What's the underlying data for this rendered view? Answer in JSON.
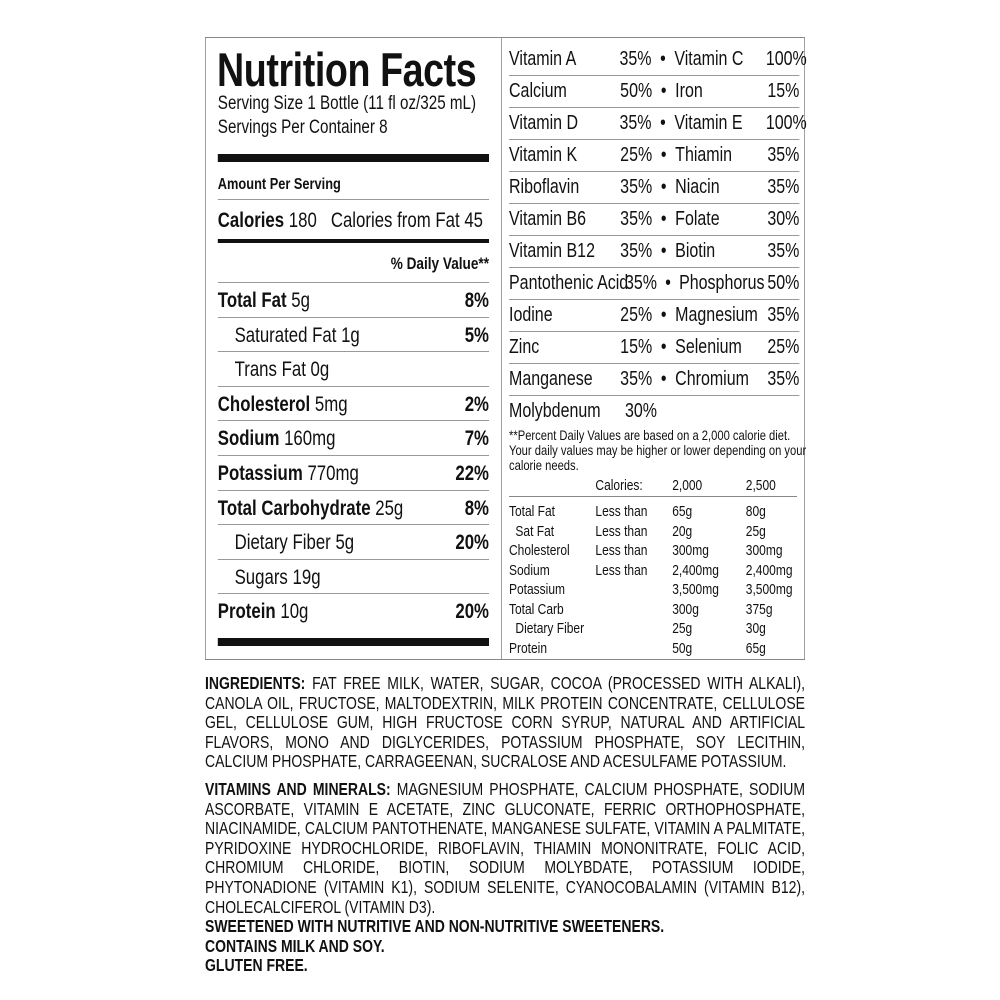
{
  "label": {
    "title": "Nutrition Facts",
    "serving_size": "Serving Size 1 Bottle (11 fl oz/325 mL)",
    "servings_per_container": "Servings Per Container 8",
    "amount_per_serving": "Amount Per Serving",
    "calories_label": "Calories",
    "calories_value": "180",
    "calories_from_fat": "Calories from Fat 45",
    "daily_value_header": "% Daily Value**",
    "nutrients": [
      {
        "name": "Total Fat",
        "amount": "5g",
        "pct": "8%",
        "bold": true
      },
      {
        "name": "Saturated Fat",
        "amount": "1g",
        "pct": "5%",
        "bold": false
      },
      {
        "name": "Trans Fat",
        "amount": "0g",
        "pct": "",
        "bold": false
      },
      {
        "name": "Cholesterol",
        "amount": "5mg",
        "pct": "2%",
        "bold": true
      },
      {
        "name": "Sodium",
        "amount": "160mg",
        "pct": "7%",
        "bold": true
      },
      {
        "name": "Potassium",
        "amount": "770mg",
        "pct": "22%",
        "bold": true
      },
      {
        "name": "Total Carbohydrate",
        "amount": "25g",
        "pct": "8%",
        "bold": true
      },
      {
        "name": "Dietary Fiber",
        "amount": "5g",
        "pct": "20%",
        "bold": false
      },
      {
        "name": "Sugars",
        "amount": "19g",
        "pct": "",
        "bold": false
      },
      {
        "name": "Protein",
        "amount": "10g",
        "pct": "20%",
        "bold": true
      }
    ],
    "vitamins": [
      [
        "Vitamin A",
        "35%",
        "Vitamin C",
        "100%"
      ],
      [
        "Calcium",
        "50%",
        "Iron",
        "15%"
      ],
      [
        "Vitamin D",
        "35%",
        "Vitamin E",
        "100%"
      ],
      [
        "Vitamin K",
        "25%",
        "Thiamin",
        "35%"
      ],
      [
        "Riboflavin",
        "35%",
        "Niacin",
        "35%"
      ],
      [
        "Vitamin B6",
        "35%",
        "Folate",
        "30%"
      ],
      [
        "Vitamin B12",
        "35%",
        "Biotin",
        "35%"
      ],
      [
        "Pantothenic Acid",
        "35%",
        "Phosphorus",
        "50%"
      ],
      [
        "Iodine",
        "25%",
        "Magnesium",
        "35%"
      ],
      [
        "Zinc",
        "15%",
        "Selenium",
        "25%"
      ],
      [
        "Manganese",
        "35%",
        "Chromium",
        "35%"
      ],
      [
        "Molybdenum",
        "30%",
        "",
        ""
      ]
    ],
    "bullet": "•",
    "footnote": "**Percent Daily Values are based on a 2,000 calorie diet. Your daily values may be higher or lower depending on your calorie needs.",
    "dv_table": {
      "header": [
        "",
        "Calories:",
        "2,000",
        "2,500"
      ],
      "rows": [
        [
          "Total Fat",
          "Less than",
          "65g",
          "80g"
        ],
        [
          " Sat Fat",
          "Less than",
          "20g",
          "25g"
        ],
        [
          "Cholesterol",
          "Less than",
          "300mg",
          "300mg"
        ],
        [
          "Sodium",
          "Less than",
          "2,400mg",
          "2,400mg"
        ],
        [
          "Potassium",
          "",
          "3,500mg",
          "3,500mg"
        ],
        [
          "Total Carb",
          "",
          "300g",
          "375g"
        ],
        [
          " Dietary Fiber",
          "",
          "25g",
          "30g"
        ],
        [
          "Protein",
          "",
          "50g",
          "65g"
        ]
      ]
    }
  },
  "ingredients": {
    "label": "INGREDIENTS:",
    "text": " FAT FREE MILK, WATER, SUGAR, COCOA (PROCESSED WITH ALKALI), CANOLA OIL, FRUCTOSE, MALTODEXTRIN, MILK PROTEIN CONCENTRATE, CELLULOSE GEL, CELLULOSE GUM, HIGH FRUCTOSE CORN SYRUP, NATURAL AND ARTIFICIAL FLAVORS, MONO AND DIGLYCERIDES, POTASSIUM PHOSPHATE, SOY LECITHIN, CALCIUM PHOSPHATE, CARRAGEENAN, SUCRALOSE AND ACESULFAME POTASSIUM.",
    "vitamins_label": "VITAMINS AND MINERALS:",
    "vitamins_text": " MAGNESIUM PHOSPHATE, CALCIUM PHOSPHATE, SODIUM ASCORBATE, VITAMIN E ACETATE, ZINC GLUCONATE, FERRIC ORTHOPHOSPHATE, NIACINAMIDE, CALCIUM PANTOTHENATE, MANGANESE SULFATE, VITAMIN A PALMITATE, PYRIDOXINE HYDROCHLORIDE, RIBOFLAVIN, THIAMIN MONONITRATE, FOLIC ACID, CHROMIUM CHLORIDE, BIOTIN, SODIUM MOLYBDATE, POTASSIUM IODIDE, PHYTONADIONE (VITAMIN K1), SODIUM SELENITE, CYANOCOBALAMIN (VITAMIN B12), CHOLECALCIFEROL (VITAMIN D3).",
    "sweetened": "SWEETENED WITH NUTRITIVE AND NON-NUTRITIVE SWEETENERS.",
    "allergens": "CONTAINS MILK AND SOY.",
    "gluten": "GLUTEN FREE."
  }
}
